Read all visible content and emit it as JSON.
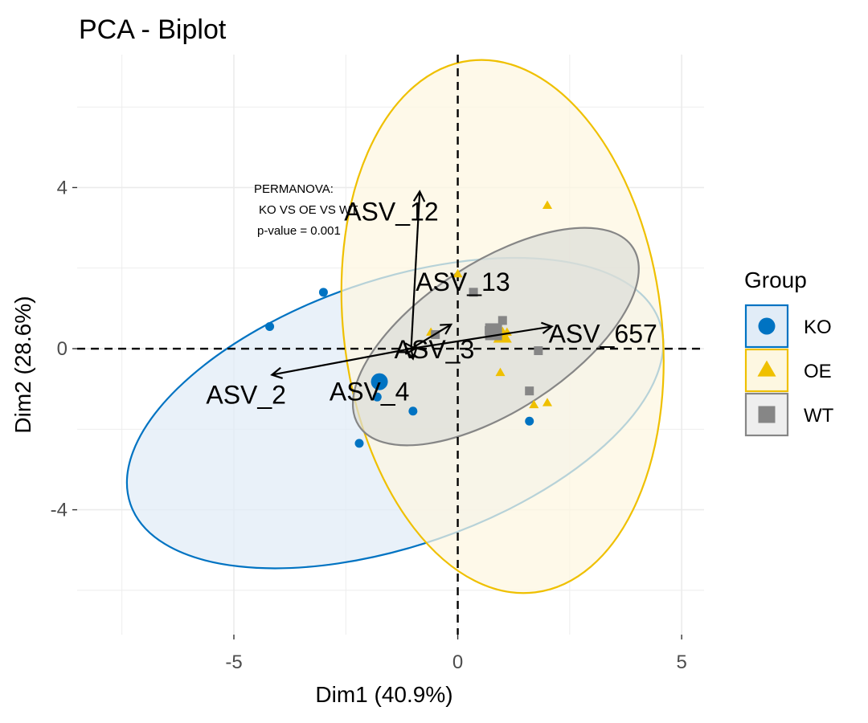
{
  "chart_data": {
    "type": "scatter",
    "title": "PCA - Biplot",
    "xlabel": "Dim1 (40.9%)",
    "ylabel": "Dim2 (28.6%)",
    "xlim": [
      -8.5,
      5.5
    ],
    "ylim": [
      -7.1,
      7.3
    ],
    "x_ticks": [
      -5,
      0,
      5
    ],
    "x_tick_labels": [
      "-5",
      "0",
      "5"
    ],
    "y_ticks": [
      -4,
      0,
      4
    ],
    "y_tick_labels": [
      "-4",
      "0",
      "4"
    ],
    "grid": true,
    "legend": {
      "title": "Group",
      "position": "right",
      "entries": [
        {
          "name": "KO",
          "shape": "circle",
          "color": "#0073C2"
        },
        {
          "name": "OE",
          "shape": "triangle",
          "color": "#EFC000"
        },
        {
          "name": "WT",
          "shape": "square",
          "color": "#868686"
        }
      ]
    },
    "annotation": [
      "PERMANOVA:",
      "KO VS OE VS WT",
      "p-value = 0.001"
    ],
    "series": [
      {
        "name": "KO",
        "color": "#0073C2",
        "fill": "#E1ECF7",
        "points": [
          [
            -3.0,
            1.4
          ],
          [
            -4.2,
            0.55
          ],
          [
            -1.8,
            -1.2
          ],
          [
            -1.0,
            -1.55
          ],
          [
            -2.2,
            -2.35
          ],
          [
            1.6,
            -1.8
          ]
        ],
        "centroid": [
          -1.75,
          -0.82
        ],
        "ellipse": {
          "center": [
            -1.4,
            -1.6
          ],
          "rx": 6.25,
          "ry": 3.3,
          "angle_deg": -19
        }
      },
      {
        "name": "OE",
        "color": "#EFC000",
        "fill": "#FDF7E1",
        "points": [
          [
            0.0,
            1.85
          ],
          [
            2.0,
            3.55
          ],
          [
            -0.6,
            0.4
          ],
          [
            1.1,
            0.4
          ],
          [
            0.95,
            -0.6
          ],
          [
            1.7,
            -1.4
          ],
          [
            2.0,
            -1.35
          ]
        ],
        "centroid": [
          1.0,
          0.3
        ],
        "ellipse": {
          "center": [
            1.0,
            0.55
          ],
          "rx": 3.55,
          "ry": 6.65,
          "angle_deg": -7
        }
      },
      {
        "name": "WT",
        "color": "#868686",
        "fill": "#DCDED8",
        "points": [
          [
            -0.5,
            0.35
          ],
          [
            0.35,
            1.4
          ],
          [
            1.0,
            0.7
          ],
          [
            1.8,
            -0.05
          ],
          [
            1.6,
            -1.05
          ],
          [
            0.7,
            0.45
          ]
        ],
        "centroid": [
          0.8,
          0.42
        ],
        "ellipse": {
          "center": [
            0.85,
            0.3
          ],
          "rx": 3.65,
          "ry": 1.85,
          "angle_deg": -33
        }
      }
    ],
    "variables": [
      {
        "name": "ASV_12",
        "x": -0.85,
        "y": 3.9
      },
      {
        "name": "ASV_13",
        "x": -0.15,
        "y": 0.6
      },
      {
        "name": "ASV_3",
        "x": -0.95,
        "y": 0.0
      },
      {
        "name": "ASV_657",
        "x": 2.1,
        "y": 0.55
      },
      {
        "name": "ASV_2",
        "x": -4.15,
        "y": -0.65
      },
      {
        "name": "ASV_4",
        "x": -1.0,
        "y": -0.25
      }
    ],
    "variable_origin": [
      0.0,
      0.0
    ]
  }
}
